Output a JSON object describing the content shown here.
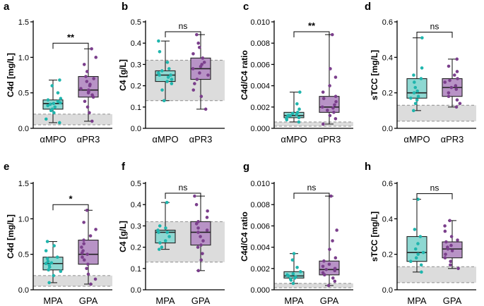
{
  "colors": {
    "group1": "#1fb5ad",
    "group1_fill": "#8ed8d2",
    "group2": "#7b3f8c",
    "group2_fill": "#b893c6",
    "reference_band": "#dcdcdc"
  },
  "chart_data": [
    {
      "id": "a",
      "type": "box",
      "panel_label": "a",
      "ylabel": "C4d [mg/L]",
      "ylim": [
        0,
        1.5
      ],
      "yticks": [
        "0.0",
        "0.5",
        "1.0",
        "1.5"
      ],
      "tick_values": [
        0,
        0.5,
        1.0,
        1.5
      ],
      "categories": [
        "αMPO",
        "αPR3"
      ],
      "significance": "**",
      "reference_range": [
        0.05,
        0.2
      ],
      "series": [
        {
          "name": "αMPO",
          "stats": {
            "min": 0.08,
            "q1": 0.27,
            "median": 0.35,
            "q3": 0.4,
            "max": 0.68
          },
          "points": [
            0.08,
            0.13,
            0.22,
            0.25,
            0.27,
            0.3,
            0.32,
            0.34,
            0.35,
            0.36,
            0.38,
            0.4,
            0.42,
            0.5,
            0.6,
            0.68
          ]
        },
        {
          "name": "αPR3",
          "stats": {
            "min": 0.1,
            "q1": 0.44,
            "median": 0.54,
            "q3": 0.73,
            "max": 1.12
          },
          "points": [
            0.1,
            0.22,
            0.3,
            0.38,
            0.44,
            0.47,
            0.5,
            0.52,
            0.54,
            0.56,
            0.6,
            0.62,
            0.66,
            0.7,
            0.73,
            0.8,
            0.9,
            1.0,
            1.12
          ]
        }
      ]
    },
    {
      "id": "b",
      "type": "box",
      "panel_label": "b",
      "ylabel": "C4 [g/L]",
      "ylim": [
        0,
        0.5
      ],
      "yticks": [
        "0.0",
        "0.1",
        "0.2",
        "0.3",
        "0.4",
        "0.5"
      ],
      "tick_values": [
        0,
        0.1,
        0.2,
        0.3,
        0.4,
        0.5
      ],
      "categories": [
        "αMPO",
        "αPR3"
      ],
      "significance": "ns",
      "reference_range": [
        0.13,
        0.32
      ],
      "series": [
        {
          "name": "αMPO",
          "stats": {
            "min": 0.13,
            "q1": 0.22,
            "median": 0.25,
            "q3": 0.27,
            "max": 0.41
          },
          "points": [
            0.13,
            0.18,
            0.21,
            0.22,
            0.23,
            0.24,
            0.25,
            0.25,
            0.26,
            0.27,
            0.28,
            0.31,
            0.36,
            0.41
          ]
        },
        {
          "name": "αPR3",
          "stats": {
            "min": 0.09,
            "q1": 0.23,
            "median": 0.28,
            "q3": 0.33,
            "max": 0.44
          },
          "points": [
            0.09,
            0.15,
            0.18,
            0.21,
            0.23,
            0.25,
            0.26,
            0.28,
            0.29,
            0.3,
            0.31,
            0.33,
            0.35,
            0.38,
            0.4,
            0.44
          ]
        }
      ]
    },
    {
      "id": "c",
      "type": "box",
      "panel_label": "c",
      "ylabel": "C4d/C4 ratio",
      "ylim": [
        0,
        0.01
      ],
      "yticks": [
        "0.000",
        "0.002",
        "0.004",
        "0.006",
        "0.008",
        "0.010"
      ],
      "tick_values": [
        0,
        0.002,
        0.004,
        0.006,
        0.008,
        0.01
      ],
      "categories": [
        "αMPO",
        "αPR3"
      ],
      "significance": "**",
      "reference_range": [
        0.0002,
        0.0006
      ],
      "series": [
        {
          "name": "αMPO",
          "stats": {
            "min": 0.0006,
            "q1": 0.001,
            "median": 0.0012,
            "q3": 0.0015,
            "max": 0.0034
          },
          "points": [
            0.0006,
            0.0008,
            0.0009,
            0.001,
            0.0011,
            0.0012,
            0.0012,
            0.0013,
            0.0014,
            0.0015,
            0.0018,
            0.0023,
            0.0034
          ]
        },
        {
          "name": "αPR3",
          "stats": {
            "min": 0.0004,
            "q1": 0.0015,
            "median": 0.002,
            "q3": 0.003,
            "max": 0.0088
          },
          "points": [
            0.0004,
            0.0009,
            0.0012,
            0.0015,
            0.0017,
            0.0019,
            0.002,
            0.0022,
            0.0025,
            0.0028,
            0.003,
            0.0034,
            0.004,
            0.0048,
            0.0056,
            0.0088
          ]
        }
      ]
    },
    {
      "id": "d",
      "type": "box",
      "panel_label": "d",
      "ylabel": "sTCC [mg/L]",
      "ylim": [
        0,
        0.6
      ],
      "yticks": [
        "0.0",
        "0.2",
        "0.4",
        "0.6"
      ],
      "tick_values": [
        0,
        0.2,
        0.4,
        0.6
      ],
      "categories": [
        "αMPO",
        "αPR3"
      ],
      "significance": "ns",
      "reference_range": [
        0.04,
        0.13
      ],
      "series": [
        {
          "name": "αMPO",
          "stats": {
            "min": 0.1,
            "q1": 0.17,
            "median": 0.2,
            "q3": 0.28,
            "max": 0.51
          },
          "points": [
            0.1,
            0.14,
            0.16,
            0.17,
            0.18,
            0.2,
            0.21,
            0.23,
            0.26,
            0.28,
            0.3,
            0.34,
            0.51
          ]
        },
        {
          "name": "αPR3",
          "stats": {
            "min": 0.12,
            "q1": 0.18,
            "median": 0.23,
            "q3": 0.28,
            "max": 0.39
          },
          "points": [
            0.12,
            0.14,
            0.16,
            0.18,
            0.2,
            0.22,
            0.23,
            0.24,
            0.26,
            0.27,
            0.28,
            0.3,
            0.32,
            0.35,
            0.39
          ]
        }
      ]
    },
    {
      "id": "e",
      "type": "box",
      "panel_label": "e",
      "ylabel": "C4d [mg/L]",
      "ylim": [
        0,
        1.5
      ],
      "yticks": [
        "0.0",
        "0.5",
        "1.0",
        "1.5"
      ],
      "tick_values": [
        0,
        0.5,
        1.0,
        1.5
      ],
      "categories": [
        "MPA",
        "GPA"
      ],
      "significance": "*",
      "reference_range": [
        0.05,
        0.2
      ],
      "series": [
        {
          "name": "MPA",
          "stats": {
            "min": 0.1,
            "q1": 0.28,
            "median": 0.37,
            "q3": 0.46,
            "max": 0.68
          },
          "points": [
            0.1,
            0.2,
            0.26,
            0.28,
            0.32,
            0.35,
            0.37,
            0.38,
            0.4,
            0.44,
            0.46,
            0.55,
            0.62,
            0.68
          ]
        },
        {
          "name": "GPA",
          "stats": {
            "min": 0.08,
            "q1": 0.36,
            "median": 0.5,
            "q3": 0.7,
            "max": 1.12
          },
          "points": [
            0.08,
            0.15,
            0.22,
            0.3,
            0.36,
            0.42,
            0.46,
            0.5,
            0.52,
            0.55,
            0.6,
            0.65,
            0.7,
            0.76,
            0.85,
            0.95,
            1.12
          ]
        }
      ]
    },
    {
      "id": "f",
      "type": "box",
      "panel_label": "f",
      "ylabel": "C4 [g/L]",
      "ylim": [
        0,
        0.5
      ],
      "yticks": [
        "0.0",
        "0.1",
        "0.2",
        "0.3",
        "0.4",
        "0.5"
      ],
      "tick_values": [
        0,
        0.1,
        0.2,
        0.3,
        0.4,
        0.5
      ],
      "categories": [
        "MPA",
        "GPA"
      ],
      "significance": "ns",
      "reference_range": [
        0.13,
        0.32
      ],
      "series": [
        {
          "name": "MPA",
          "stats": {
            "min": 0.19,
            "q1": 0.22,
            "median": 0.27,
            "q3": 0.28,
            "max": 0.41
          },
          "points": [
            0.19,
            0.2,
            0.22,
            0.23,
            0.25,
            0.27,
            0.27,
            0.28,
            0.29,
            0.3,
            0.41
          ]
        },
        {
          "name": "GPA",
          "stats": {
            "min": 0.09,
            "q1": 0.21,
            "median": 0.27,
            "q3": 0.32,
            "max": 0.44
          },
          "points": [
            0.09,
            0.14,
            0.17,
            0.2,
            0.21,
            0.23,
            0.25,
            0.27,
            0.28,
            0.29,
            0.31,
            0.32,
            0.34,
            0.37,
            0.4,
            0.44
          ]
        }
      ]
    },
    {
      "id": "g",
      "type": "box",
      "panel_label": "g",
      "ylabel": "C4d/C4 ratio",
      "ylim": [
        0,
        0.01
      ],
      "yticks": [
        "0.000",
        "0.002",
        "0.004",
        "0.006",
        "0.008",
        "0.010"
      ],
      "tick_values": [
        0,
        0.002,
        0.004,
        0.006,
        0.008,
        0.01
      ],
      "categories": [
        "MPA",
        "GPA"
      ],
      "significance": "ns",
      "reference_range": [
        0.0002,
        0.0006
      ],
      "series": [
        {
          "name": "MPA",
          "stats": {
            "min": 0.0006,
            "q1": 0.0011,
            "median": 0.0013,
            "q3": 0.0017,
            "max": 0.0034
          },
          "points": [
            0.0006,
            0.0009,
            0.001,
            0.0011,
            0.0012,
            0.0013,
            0.0014,
            0.0015,
            0.0017,
            0.0021,
            0.0028,
            0.0034
          ]
        },
        {
          "name": "GPA",
          "stats": {
            "min": 0.0004,
            "q1": 0.0014,
            "median": 0.0019,
            "q3": 0.0027,
            "max": 0.0088
          },
          "points": [
            0.0004,
            0.0008,
            0.0011,
            0.0014,
            0.0016,
            0.0018,
            0.0019,
            0.002,
            0.0022,
            0.0024,
            0.0027,
            0.003,
            0.0038,
            0.0046,
            0.0056,
            0.0088
          ]
        }
      ]
    },
    {
      "id": "h",
      "type": "box",
      "panel_label": "h",
      "ylabel": "sTCC [mg/L]",
      "ylim": [
        0,
        0.6
      ],
      "yticks": [
        "0.0",
        "0.2",
        "0.4",
        "0.6"
      ],
      "tick_values": [
        0,
        0.2,
        0.4,
        0.6
      ],
      "categories": [
        "MPA",
        "GPA"
      ],
      "significance": "ns",
      "reference_range": [
        0.04,
        0.13
      ],
      "series": [
        {
          "name": "MPA",
          "stats": {
            "min": 0.1,
            "q1": 0.16,
            "median": 0.21,
            "q3": 0.3,
            "max": 0.51
          },
          "points": [
            0.1,
            0.14,
            0.16,
            0.18,
            0.2,
            0.21,
            0.23,
            0.26,
            0.3,
            0.34,
            0.51
          ]
        },
        {
          "name": "GPA",
          "stats": {
            "min": 0.12,
            "q1": 0.18,
            "median": 0.23,
            "q3": 0.27,
            "max": 0.39
          },
          "points": [
            0.12,
            0.14,
            0.16,
            0.18,
            0.2,
            0.22,
            0.23,
            0.24,
            0.25,
            0.27,
            0.28,
            0.3,
            0.33,
            0.36,
            0.39
          ]
        }
      ]
    }
  ]
}
